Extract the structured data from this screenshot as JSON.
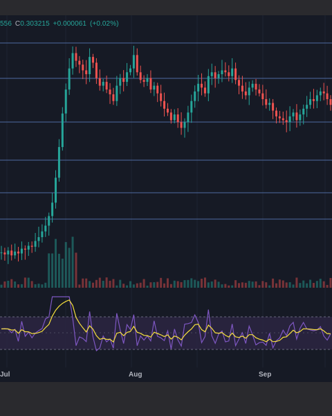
{
  "legend": {
    "partial_value": "556",
    "close_prefix": "C",
    "close_value": "0.303215",
    "change": "+0.000061",
    "change_pct": "(+0.02%)"
  },
  "time_axis": {
    "labels": [
      "Jul",
      "Aug",
      "Sep"
    ]
  },
  "colors": {
    "background": "#161a25",
    "up": "#26a69a",
    "down": "#ef5350",
    "horizontal_lines": "#5b7fc0",
    "rsi_line": "#7e57c2",
    "rsi_ma": "#f7e03c",
    "rsi_band": "#2a2540"
  },
  "chart_data": {
    "type": "candlestick",
    "panes": [
      "price",
      "volume",
      "oscillator"
    ],
    "series": [
      {
        "values": [
          40,
          38,
          42,
          37,
          41,
          39,
          44,
          43,
          47,
          46,
          52,
          56,
          62,
          68,
          78,
          92,
          118,
          150,
          185,
          210,
          232,
          248,
          240,
          236,
          230,
          226,
          244,
          238,
          222,
          214,
          218,
          210,
          205,
          198,
          214,
          222,
          218,
          228,
          232,
          246,
          228,
          220,
          218,
          222,
          210,
          214,
          206,
          198,
          190,
          186,
          178,
          184,
          176,
          170,
          176,
          186,
          198,
          208,
          216,
          212,
          206,
          224,
          228,
          222,
          226,
          230,
          228,
          224,
          232,
          220,
          214,
          208,
          204,
          212,
          216,
          210,
          206,
          200,
          194,
          196,
          188,
          182,
          180,
          178,
          176,
          182,
          186,
          178,
          184,
          190,
          194,
          200,
          198,
          204,
          208,
          206,
          200,
          194
        ]
      }
    ]
  }
}
